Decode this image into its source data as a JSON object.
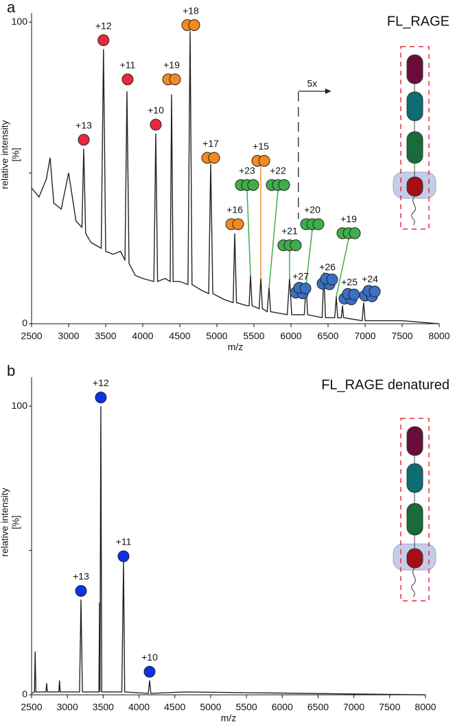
{
  "chart_data": [
    {
      "type": "line",
      "panel": "a",
      "title": "FL_RAGE",
      "xlabel": "m/z",
      "ylabel": [
        "relative intensity",
        "[%]"
      ],
      "color": "#222222",
      "x": [
        2500,
        2600,
        2700,
        2750,
        2800,
        2900,
        3000,
        3100,
        3180,
        3204,
        3230,
        3300,
        3440,
        3470,
        3500,
        3600,
        3700,
        3760,
        3787,
        3815,
        3900,
        4000,
        4150,
        4176,
        4200,
        4300,
        4370,
        4389,
        4410,
        4500,
        4610,
        4639,
        4665,
        4800,
        4890,
        4917,
        4945,
        5100,
        5220,
        5241,
        5265,
        5400,
        5435,
        5454,
        5475,
        5570,
        5593,
        5615,
        5680,
        5704,
        5725,
        5950,
        5981,
        6010,
        6180,
        6204,
        6225,
        6420,
        6444,
        6465,
        6590,
        6611,
        6630,
        6680,
        6694,
        6710,
        6960,
        6981,
        7000,
        7500,
        8000
      ],
      "values": [
        45,
        42,
        48,
        55,
        40,
        38,
        50,
        34,
        32,
        58,
        30,
        27,
        25,
        91,
        24,
        23,
        24,
        21,
        77,
        20,
        16,
        15,
        14,
        63,
        14,
        15,
        14,
        76,
        14,
        14,
        13,
        97,
        13,
        11,
        10,
        53,
        10,
        8,
        7,
        30,
        7,
        6,
        6,
        16,
        6,
        5,
        15,
        5,
        4,
        12,
        4,
        3,
        15,
        3,
        3,
        13,
        3,
        2,
        17,
        2,
        2,
        9,
        2,
        2,
        6,
        2,
        1,
        7,
        1,
        1,
        0
      ],
      "xlim": [
        2500,
        8000
      ],
      "ylim": [
        0,
        103
      ],
      "xticks": [
        2500,
        3000,
        3500,
        4000,
        4500,
        5000,
        5500,
        6000,
        6500,
        7000,
        7500,
        8000
      ],
      "yticks": [
        0,
        100
      ],
      "zoom_label": "5x",
      "zoom_x": 6100,
      "annotations": [
        {
          "label": "+13",
          "x": 3204,
          "y": 61,
          "color": "#e8283c",
          "circles": 1
        },
        {
          "label": "+12",
          "x": 3470,
          "y": 94,
          "color": "#e8283c",
          "circles": 1
        },
        {
          "label": "+11",
          "x": 3796,
          "y": 81,
          "color": "#e8283c",
          "circles": 1
        },
        {
          "label": "+10",
          "x": 4176,
          "y": 66,
          "color": "#e8283c",
          "circles": 1
        },
        {
          "label": "+19",
          "x": 4389,
          "y": 81,
          "color": "#f28a20",
          "circles": 2
        },
        {
          "label": "+18",
          "x": 4648,
          "y": 99,
          "color": "#f28a20",
          "circles": 2
        },
        {
          "label": "+17",
          "x": 4917,
          "y": 55,
          "color": "#f28a20",
          "circles": 2
        },
        {
          "label": "+16",
          "x": 5241,
          "y": 33,
          "color": "#f28a20",
          "circles": 2
        },
        {
          "label": "+15",
          "x": 5593,
          "y": 54,
          "color": "#f28a20",
          "circles": 2,
          "line_to": [
            5593,
            15
          ]
        },
        {
          "label": "+23",
          "x": 5407,
          "y": 46,
          "color": "#3fae49",
          "circles": 3,
          "line_to": [
            5454,
            16
          ]
        },
        {
          "label": "+22",
          "x": 5824,
          "y": 46,
          "color": "#3fae49",
          "circles": 3,
          "line_to": [
            5704,
            12
          ]
        },
        {
          "label": "+21",
          "x": 5981,
          "y": 26,
          "color": "#3fae49",
          "circles": 3,
          "line_to": [
            5981,
            15
          ]
        },
        {
          "label": "+20",
          "x": 6287,
          "y": 33,
          "color": "#3fae49",
          "circles": 3,
          "line_to": [
            6204,
            13
          ]
        },
        {
          "label": "+19",
          "x": 6778,
          "y": 30,
          "color": "#3fae49",
          "circles": 3,
          "line_to": [
            6611,
            9
          ]
        },
        {
          "label": "+27",
          "x": 6130,
          "y": 11,
          "color": "#3a6fc4",
          "circles": 4
        },
        {
          "label": "+26",
          "x": 6491,
          "y": 14,
          "color": "#3a6fc4",
          "circles": 4
        },
        {
          "label": "+25",
          "x": 6787,
          "y": 9,
          "color": "#3a6fc4",
          "circles": 4
        },
        {
          "label": "+24",
          "x": 7065,
          "y": 10,
          "color": "#3a6fc4",
          "circles": 4
        }
      ]
    },
    {
      "type": "line",
      "panel": "b",
      "title": "FL_RAGE denatured",
      "xlabel": "m/z",
      "ylabel": [
        "relative intensity",
        "[%]"
      ],
      "color": "#222222",
      "x": [
        2500,
        2540,
        2550,
        2560,
        2700,
        2710,
        2720,
        2880,
        2890,
        2900,
        3170,
        3190,
        3210,
        3440,
        3450,
        3455,
        3467,
        3480,
        3760,
        3784,
        3800,
        4130,
        4148,
        4165,
        4650,
        8000
      ],
      "values": [
        0.5,
        1,
        15,
        1,
        1,
        4,
        1,
        1,
        5,
        1,
        1,
        33,
        1,
        1,
        32,
        1,
        100,
        1,
        1,
        46,
        1,
        0.5,
        5,
        0.5,
        1,
        0
      ],
      "xlim": [
        2500,
        8000
      ],
      "ylim": [
        0,
        110
      ],
      "xticks": [
        2500,
        3000,
        3500,
        4000,
        4500,
        5000,
        5500,
        6000,
        6500,
        7000,
        7500,
        8000
      ],
      "yticks": [
        0,
        100
      ],
      "annotations": [
        {
          "label": "+13",
          "x": 3190,
          "y": 36,
          "color": "#1030e8",
          "circles": 1
        },
        {
          "label": "+12",
          "x": 3467,
          "y": 103,
          "color": "#1030e8",
          "circles": 1
        },
        {
          "label": "+11",
          "x": 3784,
          "y": 48,
          "color": "#1030e8",
          "circles": 1
        },
        {
          "label": "+10",
          "x": 4148,
          "y": 8,
          "color": "#1030e8",
          "circles": 1
        }
      ]
    }
  ]
}
